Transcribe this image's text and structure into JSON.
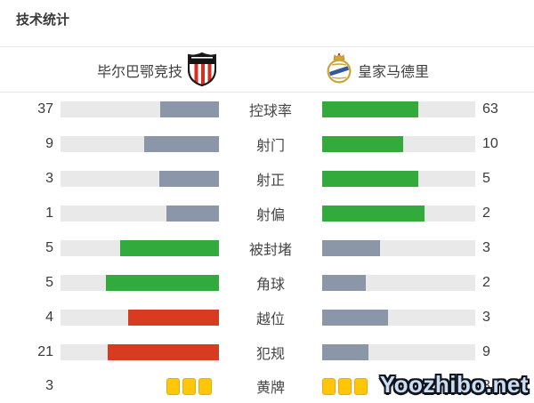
{
  "page": {
    "title": "技术统计"
  },
  "teams": {
    "home": {
      "name": "毕尔巴鄂竞技"
    },
    "away": {
      "name": "皇家马德里"
    }
  },
  "colors": {
    "slate": "#8b97a8",
    "green": "#32aa3c",
    "red": "#d93b20",
    "track": "#e9e9e9",
    "card_fill": "#ffc60a",
    "card_border": "#eda712"
  },
  "stats": {
    "rows": [
      {
        "label": "控球率",
        "home": 37,
        "away": 63,
        "home_color": "slate",
        "away_color": "green"
      },
      {
        "label": "射门",
        "home": 9,
        "away": 10,
        "home_color": "slate",
        "away_color": "green"
      },
      {
        "label": "射正",
        "home": 3,
        "away": 5,
        "home_color": "slate",
        "away_color": "green"
      },
      {
        "label": "射偏",
        "home": 1,
        "away": 2,
        "home_color": "slate",
        "away_color": "green"
      },
      {
        "label": "被封堵",
        "home": 5,
        "away": 3,
        "home_color": "green",
        "away_color": "slate"
      },
      {
        "label": "角球",
        "home": 5,
        "away": 2,
        "home_color": "green",
        "away_color": "slate"
      },
      {
        "label": "越位",
        "home": 4,
        "away": 3,
        "home_color": "red",
        "away_color": "slate"
      },
      {
        "label": "犯规",
        "home": 21,
        "away": 9,
        "home_color": "red",
        "away_color": "slate"
      }
    ],
    "cards_row": {
      "label": "黄牌",
      "home": 3,
      "away": 3
    }
  },
  "watermark": "Yoozhibo.net",
  "chart_data": {
    "type": "bar",
    "title": "技术统计",
    "categories": [
      "控球率",
      "射门",
      "射正",
      "射偏",
      "被封堵",
      "角球",
      "越位",
      "犯规",
      "黄牌"
    ],
    "series": [
      {
        "name": "毕尔巴鄂竞技",
        "values": [
          37,
          9,
          3,
          1,
          5,
          5,
          4,
          21,
          3
        ]
      },
      {
        "name": "皇家马德里",
        "values": [
          63,
          10,
          5,
          2,
          3,
          2,
          3,
          9,
          3
        ]
      }
    ],
    "layout": "mirrored horizontal bars, labels centered, bars normalized to home+away total"
  }
}
